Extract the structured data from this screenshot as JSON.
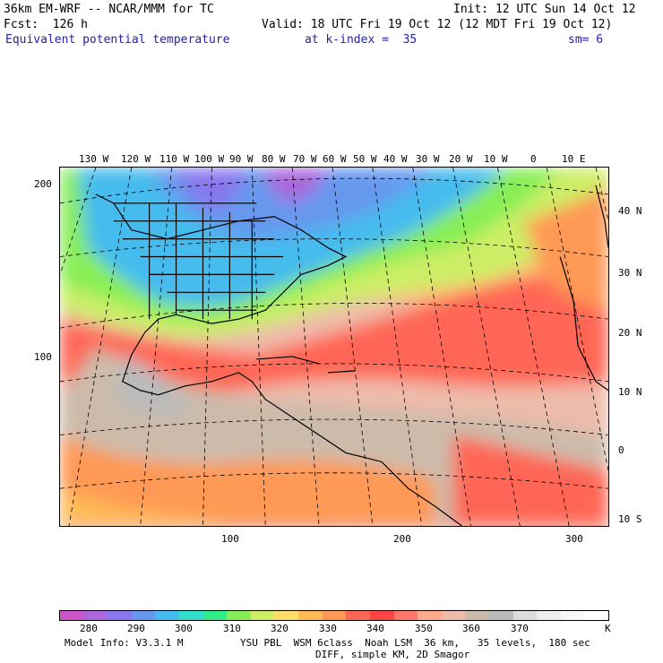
{
  "header": {
    "model": "36km EM-WRF -- NCAR/MMM for TC",
    "init": "Init: 12 UTC Sun 14 Oct 12",
    "forecast": "Fcst:  126 h",
    "valid": "Valid: 18 UTC Fri 19 Oct 12 (12 MDT Fri 19 Oct 12)",
    "field": "Equivalent potential temperature",
    "level": "at k-index =  35",
    "smoothing": "sm= 6"
  },
  "map": {
    "lon_labels": [
      "130 W",
      "120 W",
      "110 W",
      "100 W",
      "90 W",
      "80 W",
      "70 W",
      "60 W",
      "50 W",
      "40 W",
      "30 W",
      "20 W",
      "10 W",
      "0",
      "10 E"
    ],
    "lat_labels": [
      "40 N",
      "30 N",
      "20 N",
      "10 N",
      "0",
      "10 S"
    ],
    "left_axis_ticks": [
      "200",
      "100"
    ],
    "bottom_axis_ticks": [
      "100",
      "200",
      "300"
    ]
  },
  "colorbar": {
    "colors": [
      "#cc55cc",
      "#aa66dd",
      "#8877ee",
      "#6699ee",
      "#44bbee",
      "#33ddcc",
      "#33ee88",
      "#88ee55",
      "#ccee66",
      "#ffdd66",
      "#ffbb55",
      "#ff9955",
      "#ff6655",
      "#ff4444",
      "#ff7766",
      "#ffaa88",
      "#eebbaa",
      "#ccbbaa",
      "#bbbbbb",
      "#dddddd",
      "#eeeeee",
      "#f8f8f8",
      "#ffffff"
    ],
    "labels": [
      "280",
      "290",
      "300",
      "310",
      "320",
      "330",
      "340",
      "350",
      "360",
      "370"
    ],
    "unit": "K"
  },
  "footer": {
    "line1_left": "Model Info: V3.3.1 M",
    "line1_right": "YSU PBL  WSM 6class  Noah LSM  36 km,   35 levels,  180 sec",
    "line2": "DIFF, simple KM, 2D Smagor"
  }
}
